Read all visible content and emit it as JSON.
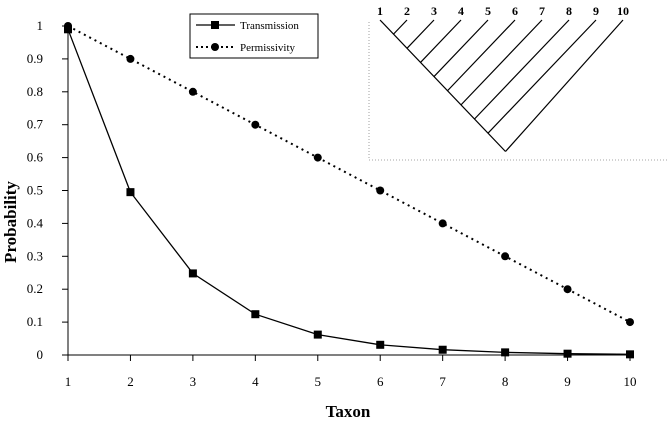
{
  "chart_data": {
    "type": "line",
    "title": "",
    "xlabel": "Taxon",
    "ylabel": "Probability",
    "x": [
      1,
      2,
      3,
      4,
      5,
      6,
      7,
      8,
      9,
      10
    ],
    "xlim": [
      1,
      10
    ],
    "ylim": [
      0,
      1
    ],
    "yticks": [
      "0",
      "0.1",
      "0.2",
      "0.3",
      "0.4",
      "0.5",
      "0.6",
      "0.7",
      "0.8",
      "0.9",
      "1"
    ],
    "xticks": [
      "1",
      "2",
      "3",
      "4",
      "5",
      "6",
      "7",
      "8",
      "9",
      "10"
    ],
    "grid": false,
    "legend_position": "top",
    "series": [
      {
        "name": "Transmission",
        "marker": "square",
        "line_style": "solid",
        "color": "#000000",
        "values": [
          0.99,
          0.495,
          0.248,
          0.124,
          0.062,
          0.031,
          0.016,
          0.008,
          0.004,
          0.002
        ]
      },
      {
        "name": "Permissivity",
        "marker": "circle",
        "line_style": "dotted",
        "color": "#000000",
        "values": [
          1.0,
          0.9,
          0.8,
          0.7,
          0.6,
          0.5,
          0.4,
          0.3,
          0.2,
          0.1
        ]
      }
    ],
    "inset_tree": {
      "taxa": [
        "1",
        "2",
        "3",
        "4",
        "5",
        "6",
        "7",
        "8",
        "9",
        "10"
      ]
    }
  }
}
